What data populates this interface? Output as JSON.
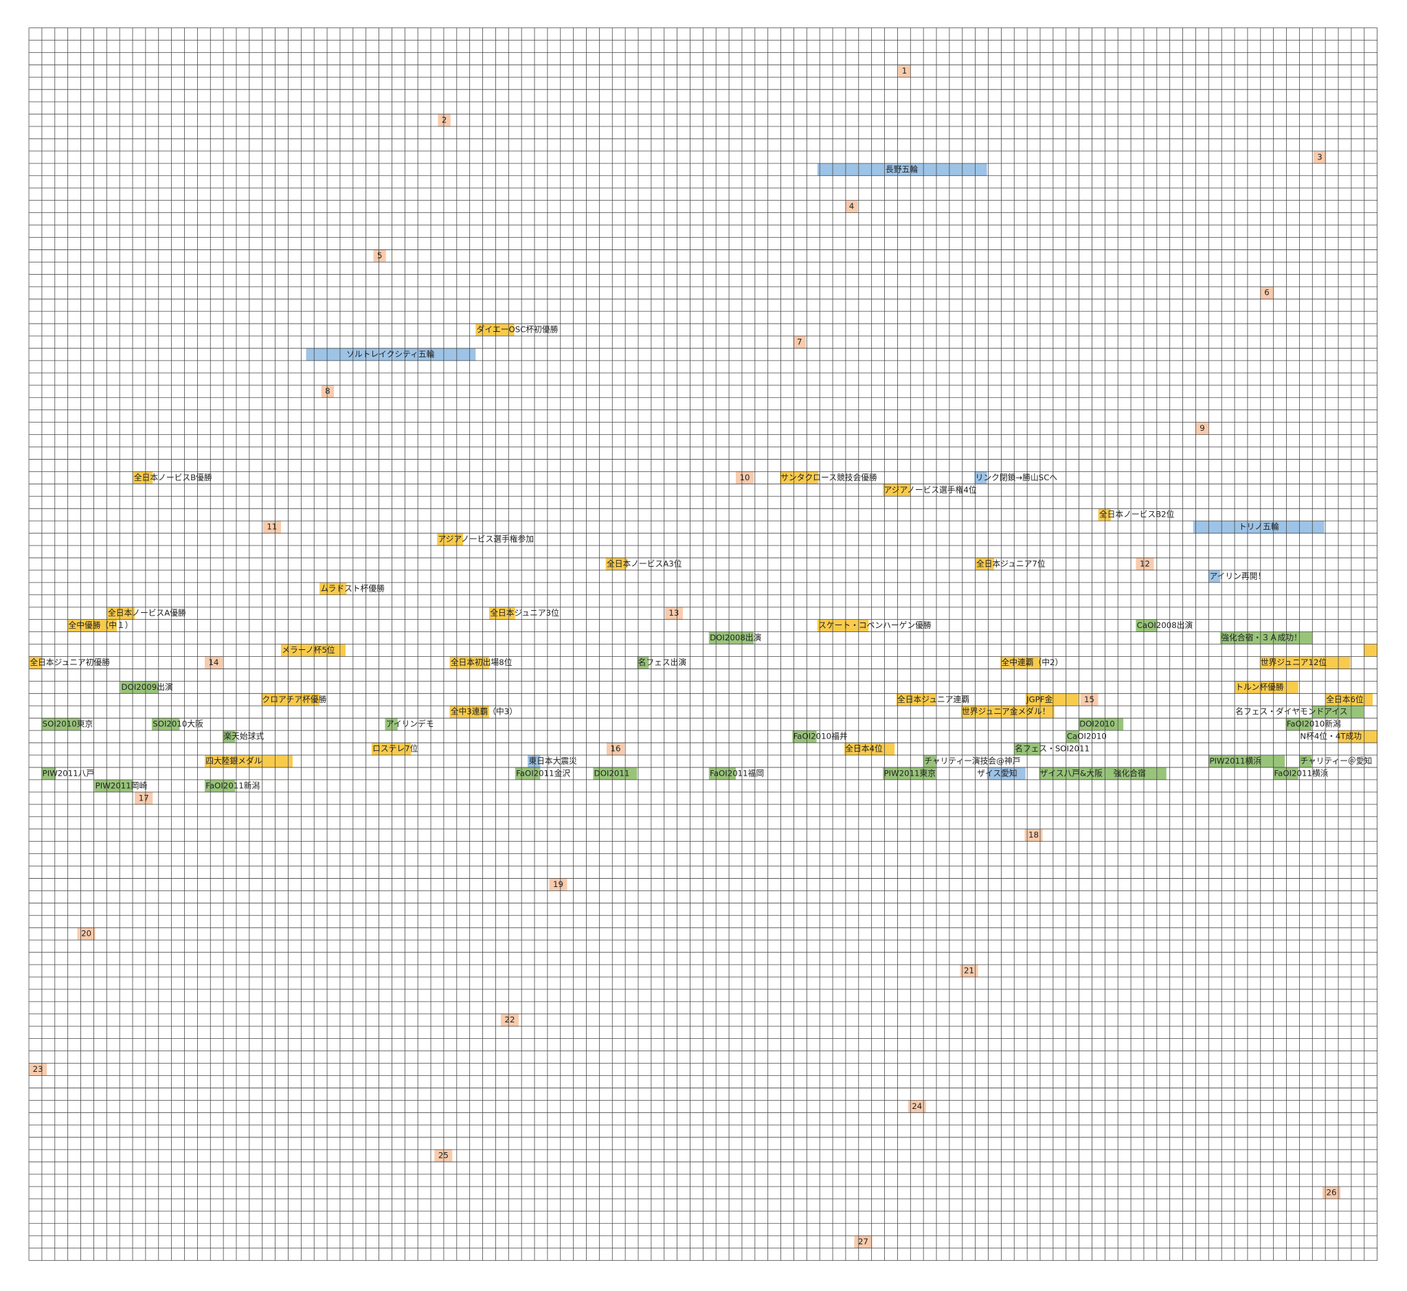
{
  "row_markers": [
    1,
    2,
    3,
    4,
    5,
    6,
    7,
    8,
    9,
    10,
    11,
    12,
    13,
    14,
    15,
    16,
    17,
    18,
    19,
    20,
    21,
    22,
    23,
    24,
    25,
    26,
    27
  ],
  "events": [
    "長野五輪",
    "ソルトレイクシティ五輪",
    "トリノ五輪",
    "リンク閉鎖→勝山SCへ",
    "アイリン再開！",
    "東日本大震災",
    "ザイス愛知",
    "ダイエーOSC杯初優勝",
    "全日本ノービスB優勝",
    "サンタクロース競技会優勝",
    "アジアノービス選手権4位",
    "全日本ノービスB2位",
    "アジアノービス選手権参加",
    "全日本ノービスA3位",
    "全日本ジュニア7位",
    "ムラドスト杯優勝",
    "全日本ノービスA優勝",
    "全日本ジュニア3位",
    "全中優勝（中１）",
    "スケート・コペンハーゲン優勝",
    "メラーノ杯5位",
    "全日本ジュニア初優勝",
    "全日本初出場8位",
    "全中連覇（中2）",
    "世界ジュニア12位",
    "トルン杯優勝",
    "クロアチア杯優勝",
    "全日本ジュニア連覇",
    "JGPF金",
    "全日本6位",
    "世界ジュニア金メダル！",
    "全中3連覇（中3）",
    "ロステレ7位",
    "全日本4位",
    "四大陸銀メダル",
    "N杯4位・4T成功",
    "DOI2008出演",
    "CaOI2008出演",
    "強化合宿・３Ａ成功！",
    "名フェス出演",
    "DOI2009出演",
    "SOI2010東京",
    "SOI2010大阪",
    "アイリンデモ",
    "DOI2010",
    "FaOI2010新潟",
    "名フェス・ダイヤモンドアイス",
    "楽天始球式",
    "FaOI2010福井",
    "CaOI2010",
    "名フェス・SOI2011",
    "チャリティー演技会@神戸",
    "PIW2011横浜",
    "チャリティー＠愛知",
    "PIW2011八戸",
    "FaOI2011金沢",
    "DOI2011",
    "FaOI2011福岡",
    "PIW2011東京",
    "ザイス八戸&大阪",
    "強化合宿",
    "FaOI2011横浜",
    "PIW2011岡崎",
    "FaOI2011新潟"
  ]
}
